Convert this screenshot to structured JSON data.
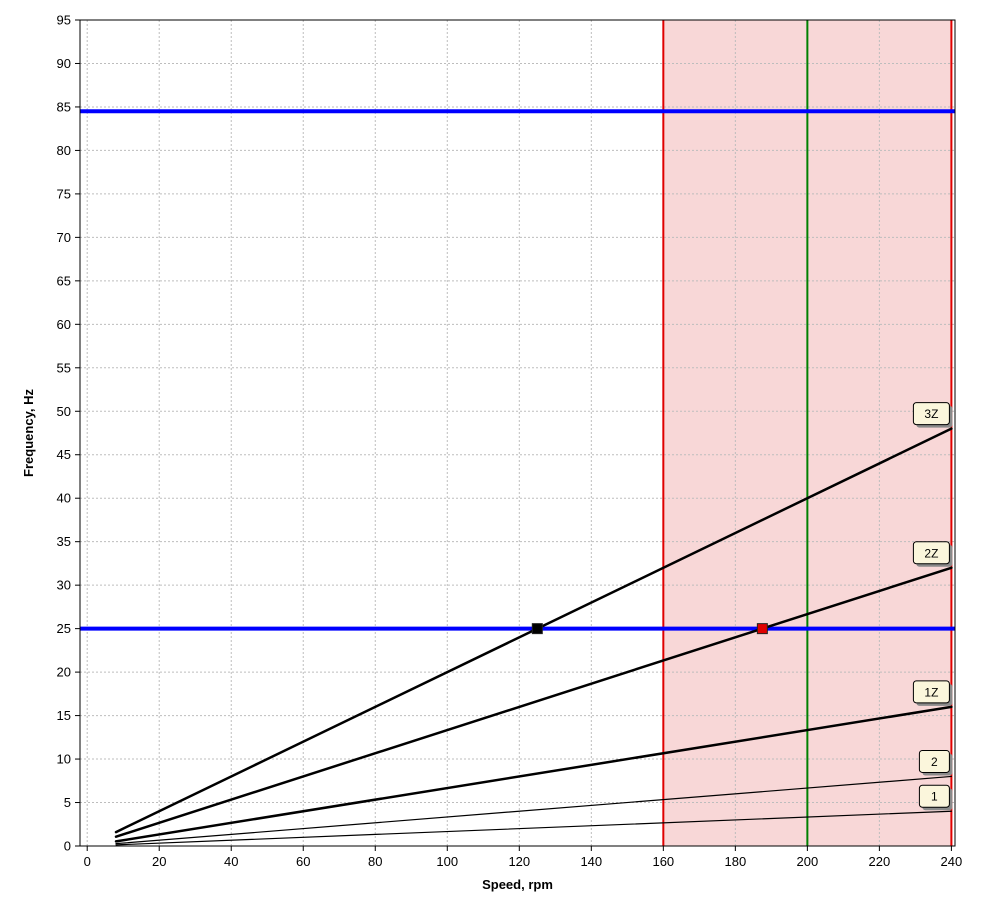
{
  "chart_data": {
    "type": "line",
    "xlabel": "Speed, rpm",
    "ylabel": "Frequency, Hz",
    "xlim": [
      -2,
      241
    ],
    "ylim": [
      0,
      95
    ],
    "x_ticks": [
      0,
      20,
      40,
      60,
      80,
      100,
      120,
      140,
      160,
      180,
      200,
      220,
      240
    ],
    "y_ticks": [
      0,
      5,
      10,
      15,
      20,
      25,
      30,
      35,
      40,
      45,
      50,
      55,
      60,
      65,
      70,
      75,
      80,
      85,
      90,
      95
    ],
    "grid": true,
    "operating_range": {
      "x_start": 160,
      "x_end": 240,
      "color": "#f8d7d7",
      "edge_color": "#e00000"
    },
    "rated_speed": {
      "x": 200,
      "color": "#008000"
    },
    "horizontal_lines": [
      {
        "y": 84.5,
        "color": "#0000ff"
      },
      {
        "y": 25,
        "color": "#0000ff"
      }
    ],
    "series": [
      {
        "label": "3Z",
        "x": [
          8,
          240
        ],
        "y": [
          1.6,
          48
        ],
        "stroke": 2.5
      },
      {
        "label": "2Z",
        "x": [
          8,
          240
        ],
        "y": [
          1.07,
          32
        ],
        "stroke": 2.5
      },
      {
        "label": "1Z",
        "x": [
          8,
          240
        ],
        "y": [
          0.53,
          16
        ],
        "stroke": 2.5
      },
      {
        "label": "2",
        "x": [
          8,
          240
        ],
        "y": [
          0.27,
          8
        ],
        "stroke": 1.2
      },
      {
        "label": "1",
        "x": [
          8,
          240
        ],
        "y": [
          0.13,
          4
        ],
        "stroke": 1.2
      }
    ],
    "intersections": [
      {
        "x": 125,
        "y": 25,
        "color": "#000000"
      },
      {
        "x": 187.5,
        "y": 25,
        "color": "#e00000"
      }
    ]
  }
}
